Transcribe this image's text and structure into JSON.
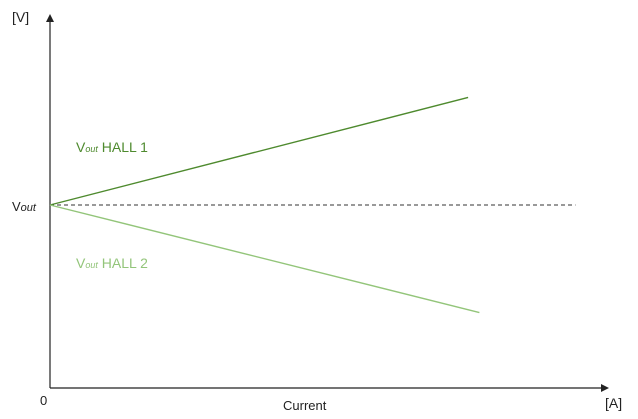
{
  "chart_data": {
    "type": "line",
    "y_unit": "[V]",
    "x_unit": "[A]",
    "xlabel": "Current",
    "origin_label": "0",
    "reference_label": {
      "main": "V",
      "sub": "out"
    },
    "xlim": [
      0,
      1
    ],
    "ylim": [
      -1.6,
      1.6
    ],
    "reference_level": 0,
    "series": [
      {
        "name": "HALL 1",
        "label_main": "V",
        "label_sub": "out",
        "label_rest": " HALL 1",
        "color": "#4e8a2e",
        "x": [
          0,
          0.74
        ],
        "y": [
          0,
          0.94
        ]
      },
      {
        "name": "HALL 2",
        "label_main": "V",
        "label_sub": "out",
        "label_rest": " HALL 2",
        "color": "#93c57a",
        "x": [
          0,
          0.76
        ],
        "y": [
          0,
          -0.94
        ]
      }
    ],
    "reference_line": {
      "style": "dashed",
      "color": "#333333",
      "x_end": 0.93
    }
  }
}
